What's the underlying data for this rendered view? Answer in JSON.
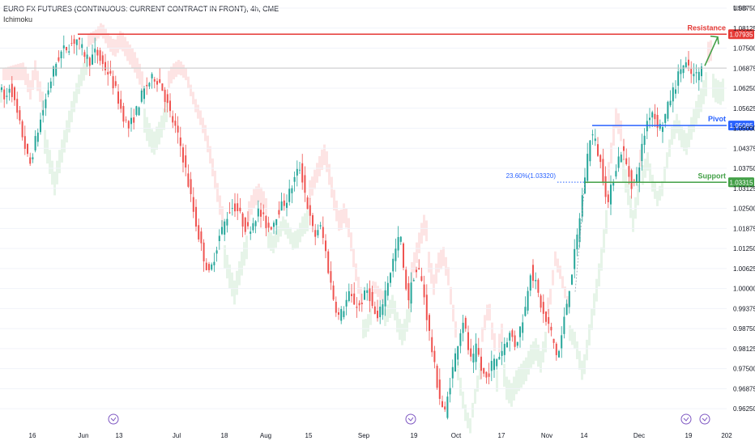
{
  "header": {
    "title": "EURO FX FUTURES (CONTINUOUS: CURRENT CONTRACT IN FRONT), 4h, CME",
    "indicator": "Ichimoku"
  },
  "chart_data": {
    "type": "candlestick",
    "currency": "USD",
    "ylim": [
      0.96,
      1.087
    ],
    "y_ticks": [
      "1.08750",
      "1.08125",
      "1.07500",
      "1.06875",
      "1.06250",
      "1.05625",
      "1.05000",
      "1.04375",
      "1.03750",
      "1.03125",
      "1.02500",
      "1.01875",
      "1.01250",
      "1.00625",
      "1.00000",
      "0.99375",
      "0.98750",
      "0.98125",
      "0.97500",
      "0.96875",
      "0.96250"
    ],
    "x_labels": [
      "16",
      "Jun",
      "13",
      "Jul",
      "18",
      "Aug",
      "15",
      "Sep",
      "19",
      "Oct",
      "17",
      "Nov",
      "14",
      "Dec",
      "19",
      "202"
    ],
    "price_path": [
      [
        0,
        1.064
      ],
      [
        8,
        1.058
      ],
      [
        14,
        1.064
      ],
      [
        22,
        1.055
      ],
      [
        30,
        1.047
      ],
      [
        38,
        1.038
      ],
      [
        46,
        1.047
      ],
      [
        54,
        1.055
      ],
      [
        62,
        1.063
      ],
      [
        70,
        1.07
      ],
      [
        78,
        1.074
      ],
      [
        88,
        1.076
      ],
      [
        96,
        1.078
      ],
      [
        104,
        1.074
      ],
      [
        112,
        1.071
      ],
      [
        120,
        1.074
      ],
      [
        128,
        1.07
      ],
      [
        136,
        1.067
      ],
      [
        144,
        1.062
      ],
      [
        152,
        1.055
      ],
      [
        160,
        1.05
      ],
      [
        168,
        1.054
      ],
      [
        176,
        1.06
      ],
      [
        184,
        1.064
      ],
      [
        192,
        1.066
      ],
      [
        200,
        1.064
      ],
      [
        206,
        1.059
      ],
      [
        212,
        1.054
      ],
      [
        218,
        1.05
      ],
      [
        224,
        1.045
      ],
      [
        230,
        1.038
      ],
      [
        236,
        1.03
      ],
      [
        242,
        1.022
      ],
      [
        248,
        1.015
      ],
      [
        254,
        1.009
      ],
      [
        260,
        1.004
      ],
      [
        266,
        1.01
      ],
      [
        272,
        1.016
      ],
      [
        278,
        1.02
      ],
      [
        284,
        1.024
      ],
      [
        290,
        1.026
      ],
      [
        296,
        1.024
      ],
      [
        302,
        1.02
      ],
      [
        308,
        1.018
      ],
      [
        314,
        1.021
      ],
      [
        320,
        1.024
      ],
      [
        326,
        1.022
      ],
      [
        332,
        1.019
      ],
      [
        338,
        1.02
      ],
      [
        344,
        1.024
      ],
      [
        350,
        1.026
      ],
      [
        356,
        1.028
      ],
      [
        362,
        1.032
      ],
      [
        368,
        1.036
      ],
      [
        372,
        1.038
      ],
      [
        378,
        1.03
      ],
      [
        384,
        1.022
      ],
      [
        390,
        1.016
      ],
      [
        396,
        1.02
      ],
      [
        402,
        1.014
      ],
      [
        408,
        1.004
      ],
      [
        414,
        0.996
      ],
      [
        420,
        0.991
      ],
      [
        426,
        0.994
      ],
      [
        432,
        0.998
      ],
      [
        438,
        0.996
      ],
      [
        444,
        0.994
      ],
      [
        450,
        0.997
      ],
      [
        456,
        1.0
      ],
      [
        462,
        0.993
      ],
      [
        468,
        0.99
      ],
      [
        474,
        0.996
      ],
      [
        480,
        1.002
      ],
      [
        486,
        1.008
      ],
      [
        492,
        1.014
      ],
      [
        496,
        1.017
      ],
      [
        500,
        1.004
      ],
      [
        506,
        0.997
      ],
      [
        512,
        1.004
      ],
      [
        518,
        1.006
      ],
      [
        524,
        1.0
      ],
      [
        528,
        0.992
      ],
      [
        534,
        0.982
      ],
      [
        540,
        0.972
      ],
      [
        546,
        0.964
      ],
      [
        551,
        0.961
      ],
      [
        556,
        0.969
      ],
      [
        562,
        0.977
      ],
      [
        568,
        0.985
      ],
      [
        574,
        0.991
      ],
      [
        578,
        0.983
      ],
      [
        584,
        0.976
      ],
      [
        590,
        0.982
      ],
      [
        596,
        0.974
      ],
      [
        602,
        0.972
      ],
      [
        608,
        0.976
      ],
      [
        614,
        0.978
      ],
      [
        620,
        0.98
      ],
      [
        626,
        0.984
      ],
      [
        632,
        0.986
      ],
      [
        638,
        0.982
      ],
      [
        644,
        0.988
      ],
      [
        650,
        0.994
      ],
      [
        656,
        1.006
      ],
      [
        662,
        1.002
      ],
      [
        668,
        0.996
      ],
      [
        674,
        0.99
      ],
      [
        680,
        0.988
      ],
      [
        686,
        0.982
      ],
      [
        690,
        0.978
      ],
      [
        696,
        0.987
      ],
      [
        702,
        0.997
      ],
      [
        708,
        1.006
      ],
      [
        714,
        1.016
      ],
      [
        720,
        1.028
      ],
      [
        726,
        1.04
      ],
      [
        731,
        1.049
      ],
      [
        736,
        1.046
      ],
      [
        742,
        1.04
      ],
      [
        748,
        1.032
      ],
      [
        752,
        1.026
      ],
      [
        758,
        1.034
      ],
      [
        764,
        1.04
      ],
      [
        770,
        1.044
      ],
      [
        776,
        1.037
      ],
      [
        782,
        1.032
      ],
      [
        788,
        1.035
      ],
      [
        794,
        1.044
      ],
      [
        800,
        1.052
      ],
      [
        806,
        1.056
      ],
      [
        812,
        1.052
      ],
      [
        818,
        1.05
      ],
      [
        824,
        1.055
      ],
      [
        830,
        1.06
      ],
      [
        836,
        1.064
      ],
      [
        842,
        1.069
      ],
      [
        848,
        1.07
      ],
      [
        854,
        1.067
      ],
      [
        860,
        1.066
      ],
      [
        866,
        1.068
      ],
      [
        870,
        1.069
      ]
    ],
    "levels": [
      {
        "name": "Resistance",
        "value": "1.07935",
        "y": 1.07935,
        "color": "#e53935"
      },
      {
        "name": "Pivot",
        "value": "1.05085",
        "y": 1.05085,
        "color": "#2962ff"
      },
      {
        "name": "Support",
        "value": "1.03315",
        "y": 1.03315,
        "color": "#43a047"
      }
    ],
    "current_price_y": 1.0688,
    "fib": {
      "label": "23.60%(1.03320)",
      "y": 1.0332,
      "color": "#2962ff"
    },
    "forecast_arrow": {
      "from": [
        870,
        1.0695
      ],
      "to": [
        886,
        1.0785
      ],
      "color": "#43a047"
    },
    "colors": {
      "up": "#26a69a",
      "down": "#ef5350",
      "cloud_bull": "#e6f4e8",
      "cloud_bear": "#fde4e4",
      "grid": "#f0f3fa",
      "axis_text": "#131722"
    }
  }
}
